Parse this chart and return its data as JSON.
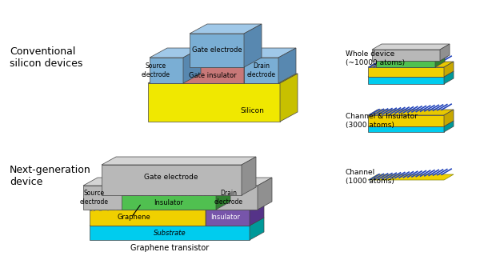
{
  "bg_color": "#ffffff",
  "conv_label": "Conventional\nsilicon devices",
  "next_label": "Next-generation\ndevice",
  "next_sublabel": "Graphene transistor",
  "colors": {
    "silicon_face": "#f0e800",
    "silicon_side": "#c8c000",
    "silicon_top": "#e0d800",
    "blue_face": "#7aaed4",
    "blue_side": "#5888b0",
    "blue_top": "#a0c8e8",
    "pink_face": "#c87878",
    "pink_side": "#a05050",
    "pink_top": "#d89090",
    "gray_face": "#b8b8b8",
    "gray_side": "#909090",
    "gray_top": "#d4d4d4",
    "green_face": "#50c050",
    "green_side": "#308030",
    "green_top": "#70e070",
    "yellow_face": "#f0d000",
    "yellow_side": "#c8a800",
    "yellow_top": "#e8c800",
    "cyan_face": "#00ccee",
    "cyan_side": "#009999",
    "cyan_top": "#44ddee",
    "purple_face": "#7755aa",
    "purple_side": "#553388",
    "purple_top": "#9977cc",
    "graphene_dot_blue": "#2244bb",
    "graphene_dot_yellow": "#f0c000",
    "stripe_color": "#4466bb",
    "stripe_light": "#aabbee"
  },
  "whole_device_label": "Whole device\n(~10000 atoms)",
  "channel_insulator_label": "Channel & Insulator\n(3000 atoms)",
  "channel_label": "Channel\n(1000 atoms)"
}
